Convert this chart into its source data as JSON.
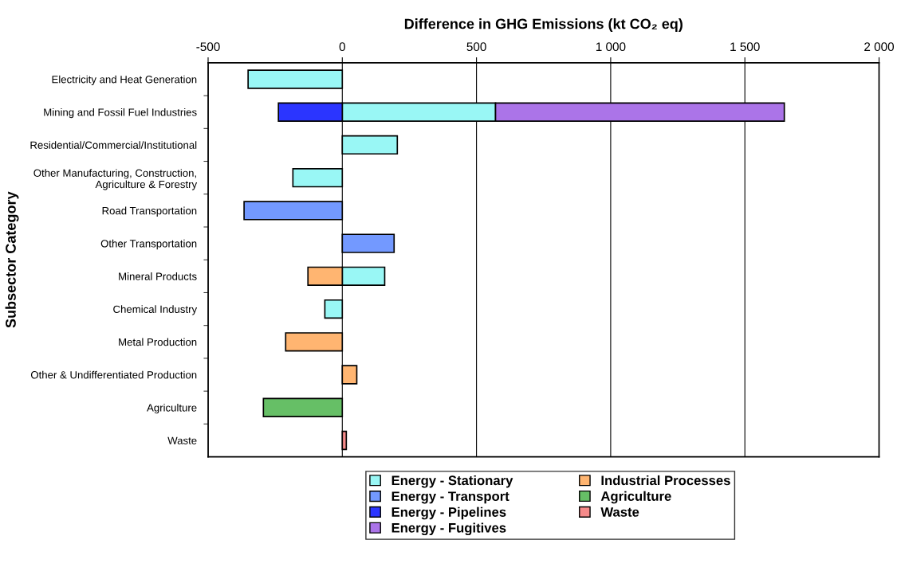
{
  "chart_data": {
    "type": "bar",
    "orientation": "horizontal",
    "stacked": true,
    "xlabel": "Difference in GHG Emissions (kt CO₂ eq)",
    "ylabel": "Subsector Category",
    "categories": [
      "Electricity and Heat Generation",
      "Mining and Fossil Fuel Industries",
      "Residential/Commercial/Institutional",
      "Other Manufacturing, Construction,\nAgriculture & Forestry",
      "Road Transportation",
      "Other Transportation",
      "Mineral Products",
      "Chemical Industry",
      "Metal Production",
      "Other & Undifferentiated Production",
      "Agriculture",
      "Waste"
    ],
    "series": [
      {
        "name": "Energy - Stationary",
        "color": "#99f7f5",
        "values": [
          -351,
          571,
          205,
          -184,
          null,
          null,
          158,
          -65,
          null,
          null,
          null,
          null
        ]
      },
      {
        "name": "Energy - Transport",
        "color": "#7399ff",
        "values": [
          null,
          null,
          null,
          null,
          -366,
          193,
          null,
          null,
          null,
          null,
          null,
          null
        ]
      },
      {
        "name": "Energy - Pipelines",
        "color": "#2b35ff",
        "values": [
          null,
          -238,
          null,
          null,
          null,
          null,
          null,
          null,
          null,
          null,
          null,
          null
        ]
      },
      {
        "name": "Energy - Fugitives",
        "color": "#ab74e8",
        "values": [
          null,
          1076,
          null,
          null,
          null,
          null,
          null,
          null,
          null,
          null,
          null,
          null
        ]
      },
      {
        "name": "Industrial Processes",
        "color": "#ffb571",
        "values": [
          null,
          null,
          null,
          null,
          null,
          null,
          -128,
          null,
          -211,
          54,
          null,
          null
        ]
      },
      {
        "name": "Agriculture",
        "color": "#66bf66",
        "values": [
          null,
          null,
          null,
          null,
          null,
          null,
          null,
          null,
          null,
          null,
          -294,
          null
        ]
      },
      {
        "name": "Waste",
        "color": "#f58a8a",
        "values": [
          null,
          null,
          null,
          null,
          null,
          null,
          null,
          null,
          null,
          null,
          null,
          15
        ]
      }
    ],
    "xlim": [
      -500,
      2000
    ],
    "xticks": [
      {
        "value": -500,
        "label": "-500"
      },
      0,
      500,
      {
        "value": 1000,
        "label": "1 000"
      },
      {
        "value": 1500,
        "label": "1 500"
      },
      {
        "value": 2000,
        "label": "2 000"
      }
    ],
    "grid": "x",
    "legend": "bottom"
  }
}
